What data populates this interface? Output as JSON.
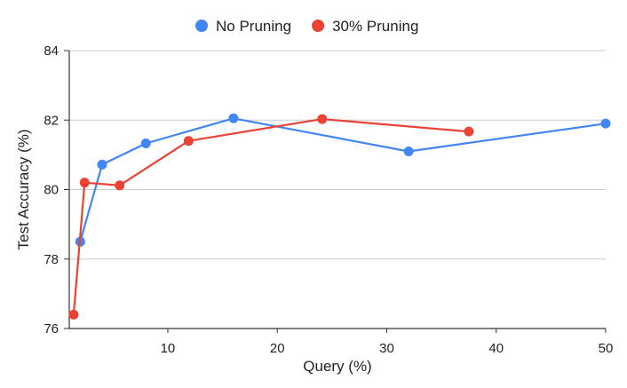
{
  "chart_data": {
    "type": "line",
    "xlabel": "Query (%)",
    "ylabel": "Test Accuracy (%)",
    "xlim": [
      1,
      50
    ],
    "ylim": [
      76,
      84
    ],
    "xticks": [
      10,
      20,
      30,
      40,
      50
    ],
    "yticks": [
      76,
      78,
      80,
      82,
      84
    ],
    "grid": "horizontal",
    "legend_position": "top-center",
    "series": [
      {
        "name": "No Pruning",
        "color": "#4285f4",
        "x": [
          2,
          4,
          8,
          16,
          32,
          50
        ],
        "y": [
          78.5,
          80.72,
          81.33,
          82.05,
          81.1,
          81.9
        ]
      },
      {
        "name": "30% Pruning",
        "color": "#ea4335",
        "x": [
          1.4,
          2.4,
          5.6,
          11.9,
          24.1,
          37.5
        ],
        "y": [
          76.4,
          80.2,
          80.12,
          81.4,
          82.03,
          81.67
        ]
      }
    ]
  }
}
